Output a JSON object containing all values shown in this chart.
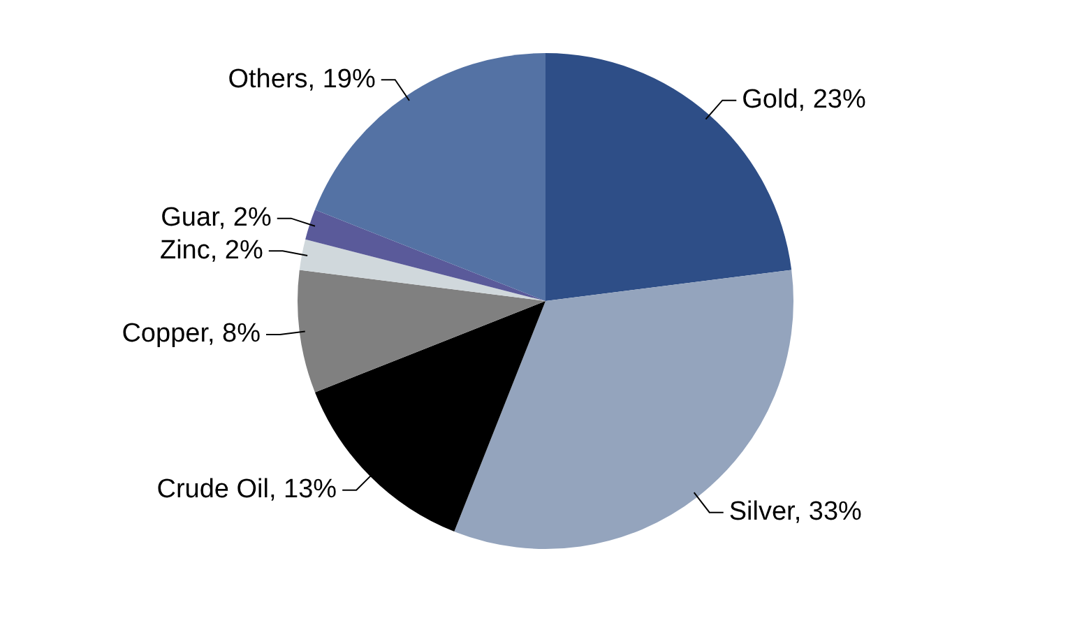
{
  "chart_data": {
    "type": "pie",
    "categories": [
      "Gold",
      "Silver",
      "Crude Oil",
      "Copper",
      "Zinc",
      "Guar",
      "Others"
    ],
    "values": [
      23,
      33,
      13,
      8,
      2,
      2,
      19
    ],
    "value_labels": [
      "23%",
      "33%",
      "13%",
      "8%",
      "2%",
      "2%",
      "19%"
    ],
    "colors": [
      "#2e4e87",
      "#94a4bd",
      "#000000",
      "#808080",
      "#d0d8dc",
      "#5a5a9a",
      "#5472a4"
    ],
    "legend": false
  }
}
